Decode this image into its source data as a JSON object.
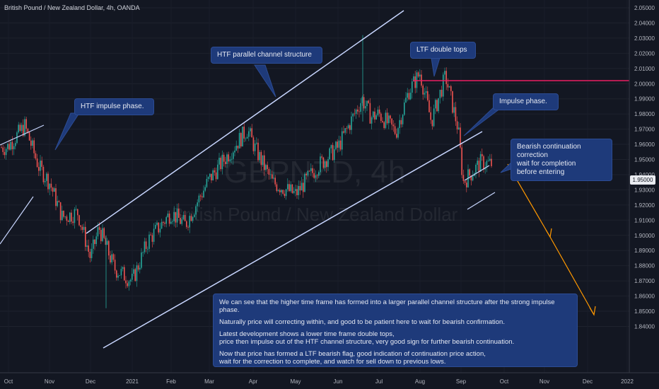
{
  "header": {
    "title": "British Pound / New Zealand Dollar, 4h, OANDA"
  },
  "watermark": {
    "symbol": "GBPNZD, 4h",
    "name": "British Pound / New Zealand Dollar"
  },
  "colors": {
    "background": "#131722",
    "up_candle": "#26a69a",
    "down_candle": "#ef5350",
    "channel_line": "#c8d6ff",
    "resistance_line": "#e91e63",
    "projection_arrow": "#ff9800",
    "callout_bg": "#1e3a7a"
  },
  "price_axis": {
    "labels": [
      "2.05000",
      "2.04000",
      "2.03000",
      "2.02000",
      "2.01000",
      "2.00000",
      "1.99000",
      "1.98000",
      "1.97000",
      "1.96000",
      "1.95000",
      "1.94000",
      "1.93000",
      "1.92000",
      "1.91000",
      "1.90000",
      "1.89000",
      "1.88000",
      "1.87000",
      "1.86000",
      "1.85000",
      "1.84000"
    ],
    "current_price": "1.95000"
  },
  "time_axis": {
    "labels": [
      "Oct",
      "Nov",
      "Dec",
      "2021",
      "Feb",
      "Mar",
      "Apr",
      "May",
      "Jun",
      "Jul",
      "Aug",
      "Sep",
      "Oct",
      "Nov",
      "Dec",
      "2022"
    ]
  },
  "callouts": {
    "htf_impulse": "HTF impulse phase.",
    "htf_channel": "HTF parallel channel structure",
    "ltf_double_tops": "LTF double tops",
    "impulse_phase": "Impulse phase.",
    "bearish_continuation": "Bearish continuation correction\nwait for completion\nbefore entering"
  },
  "notes": {
    "p1": "We can see that the higher time frame has formed into a larger parallel channel structure after the strong impulse phase.",
    "p2": "Naturally price will correcting within, and good to be patient here to wait for bearish confirmation.",
    "p3": "Latest development shows a lower time frame double tops,\nprice then impulse out of the HTF channel structure, very good sign for further bearish continuation.",
    "p4": "Now that price has formed a LTF bearish flag, good indication of continuation price action,\nwait for the correction to complete, and watch for sell down to previous lows."
  },
  "chart_data": {
    "type": "candlestick",
    "title": "British Pound / New Zealand Dollar, 4h, OANDA",
    "y_range": [
      1.835,
      2.055
    ],
    "x_ticks": [
      "Oct",
      "Nov",
      "Dec",
      "2021",
      "Feb",
      "Mar",
      "Apr",
      "May",
      "Jun",
      "Jul",
      "Aug",
      "Sep",
      "Oct",
      "Nov",
      "Dec",
      "2022"
    ],
    "price_path": [
      {
        "x": "Oct 2020",
        "y": 1.958
      },
      {
        "x": "mid Oct 2020",
        "y": 1.972
      },
      {
        "x": "late Oct 2020",
        "y": 1.945
      },
      {
        "x": "Nov 2020",
        "y": 1.935
      },
      {
        "x": "mid Nov 2020",
        "y": 1.912
      },
      {
        "x": "late Nov 2020",
        "y": 1.915
      },
      {
        "x": "Dec 2020",
        "y": 1.885
      },
      {
        "x": "mid Dec 2020",
        "y": 1.905
      },
      {
        "x": "late Dec 2020",
        "y": 1.878
      },
      {
        "x": "2021",
        "y": 1.87
      },
      {
        "x": "mid Jan 2021",
        "y": 1.897
      },
      {
        "x": "Feb 2021",
        "y": 1.915
      },
      {
        "x": "mid Feb 2021",
        "y": 1.907
      },
      {
        "x": "Mar 2021",
        "y": 1.937
      },
      {
        "x": "late Mar 2021",
        "y": 1.97
      },
      {
        "x": "Apr 2021",
        "y": 1.958
      },
      {
        "x": "mid Apr 2021",
        "y": 1.935
      },
      {
        "x": "May 2021",
        "y": 1.927
      },
      {
        "x": "mid May 2021",
        "y": 1.945
      },
      {
        "x": "Jun 2021",
        "y": 1.958
      },
      {
        "x": "mid Jun 2021",
        "y": 1.99
      },
      {
        "x": "late Jun 2021",
        "y": 1.978
      },
      {
        "x": "Jul 2021",
        "y": 1.98
      },
      {
        "x": "mid Jul 2021",
        "y": 1.968
      },
      {
        "x": "late Jul 2021",
        "y": 1.995
      },
      {
        "x": "Aug 2021",
        "y": 2.007
      },
      {
        "x": "mid Aug 2021",
        "y": 1.975
      },
      {
        "x": "late Aug 2021",
        "y": 2.005
      },
      {
        "x": "early Sep 2021",
        "y": 1.97
      },
      {
        "x": "Sep 2021",
        "y": 1.935
      },
      {
        "x": "mid Sep 2021",
        "y": 1.948
      },
      {
        "x": "late Sep 2021",
        "y": 1.947
      }
    ],
    "annotations": {
      "resistance_level": 2.008,
      "htf_channel_upper": [
        {
          "x": "Nov 2020",
          "y": 1.925
        },
        {
          "x": "Jul 2021",
          "y": 2.05
        }
      ],
      "htf_channel_lower": [
        {
          "x": "Dec 2020",
          "y": 1.85
        },
        {
          "x": "Sep 2021",
          "y": 1.975
        }
      ],
      "ltf_flag_upper": [
        {
          "x": "Sep 2021",
          "y": 1.945
        },
        {
          "x": "late Sep 2021",
          "y": 1.957
        }
      ],
      "ltf_flag_lower": [
        {
          "x": "Sep 2021",
          "y": 1.932
        },
        {
          "x": "late Sep 2021",
          "y": 1.94
        }
      ],
      "projection": [
        {
          "x": "Oct 2021",
          "y": 1.958
        },
        {
          "x": "Dec 2021",
          "y": 1.868
        }
      ]
    }
  }
}
